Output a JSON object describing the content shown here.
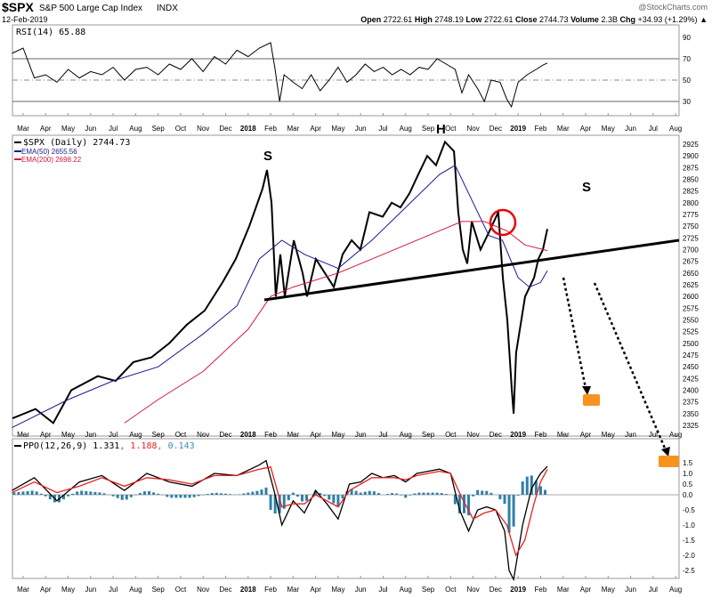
{
  "header": {
    "symbol": "$SPX",
    "name": "S&P 500 Large Cap Index",
    "exchange": "INDX",
    "date": "12-Feb-2019",
    "brand": "@StockCharts.com",
    "open_label": "Open",
    "open": "2722.61",
    "high_label": "High",
    "high": "2748.19",
    "low_label": "Low",
    "low": "2722.61",
    "close_label": "Close",
    "close": "2744.73",
    "volume_label": "Volume",
    "volume": "2.3B",
    "chg_label": "Chg",
    "chg": "+34.93 (+1.29%)",
    "chg_arrow": "▲"
  },
  "chart_data": [
    {
      "type": "line",
      "title": "RSI(14) 65.88",
      "ylim": [
        10,
        100
      ],
      "yticks": [
        "90",
        "70",
        "50",
        "30"
      ],
      "levels": [
        70,
        50,
        30
      ],
      "series": [
        {
          "name": "RSI(14)",
          "color": "#000000",
          "points": [
            [
              -0.5,
              75
            ],
            [
              0,
              80
            ],
            [
              0.5,
              52
            ],
            [
              1,
              55
            ],
            [
              1.5,
              48
            ],
            [
              2,
              60
            ],
            [
              2.5,
              52
            ],
            [
              3,
              58
            ],
            [
              3.5,
              55
            ],
            [
              4,
              62
            ],
            [
              4.5,
              50
            ],
            [
              5,
              60
            ],
            [
              5.5,
              62
            ],
            [
              6,
              55
            ],
            [
              6.5,
              65
            ],
            [
              7,
              60
            ],
            [
              7.5,
              70
            ],
            [
              8,
              58
            ],
            [
              8.5,
              72
            ],
            [
              9,
              65
            ],
            [
              9.5,
              78
            ],
            [
              10,
              72
            ],
            [
              10.5,
              80
            ],
            [
              11,
              85
            ],
            [
              11.2,
              60
            ],
            [
              11.4,
              30
            ],
            [
              11.6,
              55
            ],
            [
              12,
              48
            ],
            [
              12.4,
              42
            ],
            [
              12.8,
              55
            ],
            [
              13.2,
              40
            ],
            [
              13.6,
              50
            ],
            [
              14,
              62
            ],
            [
              14.4,
              48
            ],
            [
              14.8,
              55
            ],
            [
              15.2,
              65
            ],
            [
              15.6,
              58
            ],
            [
              16,
              62
            ],
            [
              16.4,
              55
            ],
            [
              16.8,
              60
            ],
            [
              17.2,
              55
            ],
            [
              17.6,
              62
            ],
            [
              18,
              60
            ],
            [
              18.4,
              70
            ],
            [
              18.8,
              65
            ],
            [
              19.2,
              60
            ],
            [
              19.5,
              38
            ],
            [
              19.8,
              55
            ],
            [
              20.2,
              42
            ],
            [
              20.5,
              30
            ],
            [
              20.8,
              50
            ],
            [
              21.2,
              48
            ],
            [
              21.5,
              32
            ],
            [
              21.7,
              25
            ],
            [
              22,
              48
            ],
            [
              22.4,
              55
            ],
            [
              22.8,
              60
            ],
            [
              23.1,
              64
            ],
            [
              23.3,
              66
            ]
          ]
        }
      ]
    },
    {
      "type": "line",
      "title": "$SPX (Daily) 2744.73",
      "ylim": [
        2310,
        2940
      ],
      "yticks": [
        "2925",
        "2900",
        "2875",
        "2850",
        "2825",
        "2800",
        "2775",
        "2750",
        "2725",
        "2700",
        "2675",
        "2650",
        "2625",
        "2600",
        "2575",
        "2550",
        "2525",
        "2500",
        "2475",
        "2450",
        "2425",
        "2400",
        "2375",
        "2350",
        "2325"
      ],
      "series": [
        {
          "name": "$SPX (Daily) 2744.73",
          "color": "#000000",
          "points": [
            [
              -0.47,
              2340
            ],
            [
              0.55,
              2360
            ],
            [
              1.34,
              2330
            ],
            [
              2.14,
              2400
            ],
            [
              3.32,
              2430
            ],
            [
              4.11,
              2420
            ],
            [
              4.9,
              2460
            ],
            [
              5.7,
              2470
            ],
            [
              6.49,
              2500
            ],
            [
              7.28,
              2540
            ],
            [
              8.07,
              2570
            ],
            [
              8.86,
              2630
            ],
            [
              9.45,
              2680
            ],
            [
              10.05,
              2750
            ],
            [
              10.64,
              2830
            ],
            [
              10.84,
              2870
            ],
            [
              11.04,
              2800
            ],
            [
              11.23,
              2600
            ],
            [
              11.43,
              2690
            ],
            [
              11.63,
              2600
            ],
            [
              12.03,
              2720
            ],
            [
              12.42,
              2650
            ],
            [
              12.62,
              2600
            ],
            [
              13.01,
              2680
            ],
            [
              13.41,
              2650
            ],
            [
              13.81,
              2620
            ],
            [
              14.2,
              2690
            ],
            [
              14.6,
              2720
            ],
            [
              14.99,
              2700
            ],
            [
              15.39,
              2780
            ],
            [
              15.98,
              2770
            ],
            [
              16.38,
              2800
            ],
            [
              16.77,
              2790
            ],
            [
              17.17,
              2820
            ],
            [
              17.56,
              2860
            ],
            [
              17.96,
              2900
            ],
            [
              18.35,
              2880
            ],
            [
              18.75,
              2930
            ],
            [
              19.15,
              2910
            ],
            [
              19.34,
              2780
            ],
            [
              19.54,
              2700
            ],
            [
              19.74,
              2670
            ],
            [
              19.94,
              2760
            ],
            [
              20.33,
              2700
            ],
            [
              20.73,
              2740
            ],
            [
              21.12,
              2780
            ],
            [
              21.32,
              2640
            ],
            [
              21.52,
              2550
            ],
            [
              21.72,
              2400
            ],
            [
              21.8,
              2350
            ],
            [
              21.91,
              2480
            ],
            [
              22.31,
              2600
            ],
            [
              22.71,
              2640
            ],
            [
              22.9,
              2680
            ],
            [
              23.1,
              2700
            ],
            [
              23.3,
              2744
            ]
          ]
        },
        {
          "name": "EMA(50) 2655.56",
          "color": "#1a1a8c",
          "points": [
            [
              -0.5,
              2320
            ],
            [
              2,
              2380
            ],
            [
              4,
              2420
            ],
            [
              6,
              2450
            ],
            [
              8,
              2520
            ],
            [
              9.5,
              2580
            ],
            [
              10.5,
              2680
            ],
            [
              11.5,
              2720
            ],
            [
              12.5,
              2690
            ],
            [
              14,
              2660
            ],
            [
              15.5,
              2720
            ],
            [
              17,
              2790
            ],
            [
              18.5,
              2860
            ],
            [
              19.2,
              2880
            ],
            [
              20,
              2800
            ],
            [
              20.7,
              2730
            ],
            [
              21.3,
              2720
            ],
            [
              22,
              2640
            ],
            [
              22.5,
              2620
            ],
            [
              23,
              2630
            ],
            [
              23.3,
              2655
            ]
          ]
        },
        {
          "name": "EMA(200) 2698.22",
          "color": "#d6183c",
          "points": [
            [
              4.5,
              2330
            ],
            [
              6,
              2380
            ],
            [
              8,
              2440
            ],
            [
              10,
              2530
            ],
            [
              11,
              2600
            ],
            [
              12,
              2620
            ],
            [
              14,
              2650
            ],
            [
              16,
              2690
            ],
            [
              18,
              2730
            ],
            [
              19.5,
              2760
            ],
            [
              20.5,
              2760
            ],
            [
              21.5,
              2740
            ],
            [
              22.3,
              2710
            ],
            [
              23.3,
              2698
            ]
          ]
        }
      ],
      "annotations": [
        "S",
        "H",
        "S"
      ]
    },
    {
      "type": "line",
      "title": "PPO(12,26,9)",
      "values_text": [
        "1.331",
        ", 1.188",
        ", 0.143"
      ],
      "ylim": [
        -2.7,
        1.8
      ],
      "yticks": [
        "1.5",
        "1.0",
        "0.5",
        "0.0",
        "-0.5",
        "-1.0",
        "-1.5",
        "-2.0",
        "-2.5"
      ],
      "series": [
        {
          "name": "PPO",
          "color": "#000000",
          "points": [
            [
              -0.5,
              0.2
            ],
            [
              0.5,
              0.8
            ],
            [
              1.5,
              -0.2
            ],
            [
              2.5,
              0.6
            ],
            [
              3.5,
              0.9
            ],
            [
              4.5,
              0.2
            ],
            [
              5.5,
              1.0
            ],
            [
              6.5,
              0.6
            ],
            [
              7.5,
              0.4
            ],
            [
              8.5,
              1.0
            ],
            [
              9.5,
              0.9
            ],
            [
              10.5,
              1.4
            ],
            [
              10.8,
              1.6
            ],
            [
              11.2,
              0.0
            ],
            [
              11.5,
              -1.0
            ],
            [
              12,
              -0.2
            ],
            [
              12.5,
              -0.6
            ],
            [
              13,
              0.2
            ],
            [
              13.5,
              -0.3
            ],
            [
              14,
              -0.8
            ],
            [
              14.5,
              0.5
            ],
            [
              15,
              0.6
            ],
            [
              15.5,
              1.0
            ],
            [
              16,
              0.8
            ],
            [
              16.5,
              0.9
            ],
            [
              17,
              0.6
            ],
            [
              17.5,
              1.0
            ],
            [
              18,
              1.1
            ],
            [
              18.5,
              1.2
            ],
            [
              19,
              1.0
            ],
            [
              19.4,
              -0.5
            ],
            [
              19.8,
              -1.2
            ],
            [
              20.2,
              -0.5
            ],
            [
              20.6,
              -0.4
            ],
            [
              21,
              -0.5
            ],
            [
              21.4,
              -1.2
            ],
            [
              21.6,
              -2.5
            ],
            [
              21.8,
              -2.8
            ],
            [
              22.2,
              -1.0
            ],
            [
              22.6,
              0.3
            ],
            [
              23,
              1.0
            ],
            [
              23.3,
              1.33
            ]
          ]
        },
        {
          "name": "Signal",
          "color": "#e82020",
          "points": [
            [
              -0.5,
              0.1
            ],
            [
              0.5,
              0.6
            ],
            [
              1.5,
              0.1
            ],
            [
              2.5,
              0.4
            ],
            [
              3.5,
              0.8
            ],
            [
              4.5,
              0.4
            ],
            [
              5.5,
              0.8
            ],
            [
              6.5,
              0.7
            ],
            [
              7.5,
              0.5
            ],
            [
              8.5,
              0.9
            ],
            [
              9.5,
              0.9
            ],
            [
              10.5,
              1.2
            ],
            [
              11,
              1.3
            ],
            [
              11.5,
              -0.4
            ],
            [
              12,
              -0.3
            ],
            [
              12.5,
              -0.3
            ],
            [
              13,
              0.0
            ],
            [
              13.5,
              -0.2
            ],
            [
              14,
              -0.4
            ],
            [
              14.5,
              0.2
            ],
            [
              15,
              0.5
            ],
            [
              15.5,
              0.8
            ],
            [
              16,
              0.8
            ],
            [
              16.5,
              0.8
            ],
            [
              17,
              0.7
            ],
            [
              17.5,
              0.9
            ],
            [
              18,
              1.0
            ],
            [
              18.5,
              1.1
            ],
            [
              19,
              1.0
            ],
            [
              19.5,
              -0.1
            ],
            [
              20,
              -0.8
            ],
            [
              20.5,
              -0.6
            ],
            [
              21,
              -0.5
            ],
            [
              21.5,
              -1.0
            ],
            [
              21.9,
              -2.0
            ],
            [
              22.3,
              -1.5
            ],
            [
              22.7,
              -0.3
            ],
            [
              23,
              0.6
            ],
            [
              23.3,
              1.19
            ]
          ]
        }
      ]
    },
    {
      "type": "axis",
      "x_tick_labels": [
        "Mar",
        "Apr",
        "May",
        "Jun",
        "Jul",
        "Aug",
        "Sep",
        "Oct",
        "Nov",
        "Dec",
        "2018",
        "Feb",
        "Mar",
        "Apr",
        "May",
        "Jun",
        "Jul",
        "Aug",
        "Sep",
        "Oct",
        "Nov",
        "Dec",
        "2019",
        "Feb",
        "Mar",
        "Apr",
        "May",
        "Jun",
        "Jul",
        "Aug"
      ]
    }
  ]
}
